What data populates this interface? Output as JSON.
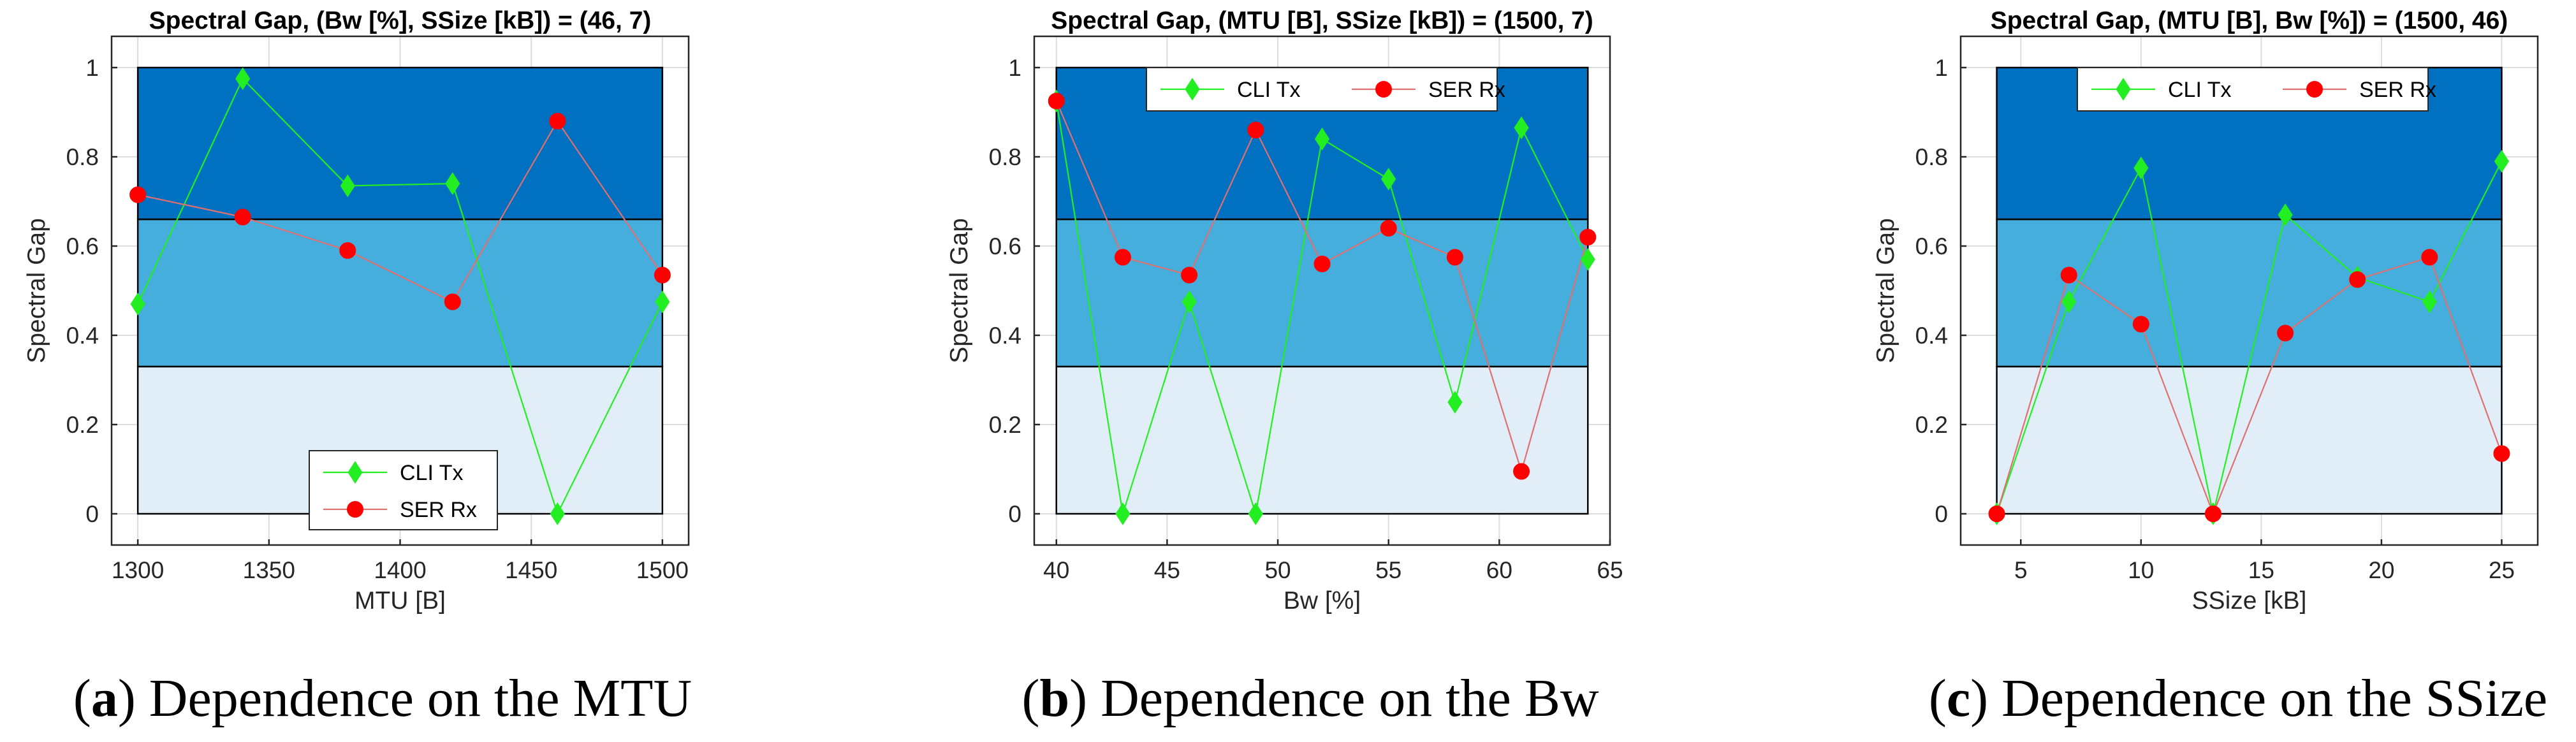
{
  "colors": {
    "band_low": "#E1EEF8",
    "band_mid": "#46AEDD",
    "band_high": "#0070C0",
    "cli": "#22EE22",
    "ser": "#FF0000",
    "ser_line": "#E07070"
  },
  "caption_open": "(",
  "caption_close": ")",
  "chart_data": [
    {
      "type": "line",
      "title": "Spectral Gap, (Bw [%], SSize [kB]) = (46, 7)",
      "xlabel": "MTU [B]",
      "ylabel": "Spectral Gap",
      "xlim": [
        1290,
        1510
      ],
      "ylim": [
        -0.07,
        1.07
      ],
      "xticks": [
        1300,
        1350,
        1400,
        1450,
        1500
      ],
      "yticks": [
        0,
        0.2,
        0.4,
        0.6,
        0.8,
        1
      ],
      "ytick_labels": [
        "0",
        "0.2",
        "0.4",
        "0.6",
        "0.8",
        "1"
      ],
      "grid": true,
      "legend_position": "bottom-center",
      "bands": [
        [
          0,
          0.33
        ],
        [
          0.33,
          0.66
        ],
        [
          0.66,
          1
        ]
      ],
      "x": [
        1300,
        1340,
        1380,
        1420,
        1460,
        1500
      ],
      "series": [
        {
          "name": "CLI Tx",
          "marker": "diamond",
          "values": [
            0.47,
            0.975,
            0.735,
            0.74,
            0.0,
            0.475
          ]
        },
        {
          "name": "SER Rx",
          "marker": "circle",
          "values": [
            0.715,
            0.665,
            0.59,
            0.475,
            0.88,
            0.535
          ]
        }
      ],
      "caption_letter": "a",
      "caption_text": " Dependence on the MTU"
    },
    {
      "type": "line",
      "title": "Spectral Gap, (MTU [B], SSize [kB]) = (1500, 7)",
      "xlabel": "Bw [%]",
      "ylabel": "Spectral Gap",
      "xlim": [
        39,
        65
      ],
      "ylim": [
        -0.07,
        1.07
      ],
      "xticks": [
        40,
        45,
        50,
        55,
        60,
        65
      ],
      "yticks": [
        0,
        0.2,
        0.4,
        0.6,
        0.8,
        1
      ],
      "ytick_labels": [
        "0",
        "0.2",
        "0.4",
        "0.6",
        "0.8",
        "1"
      ],
      "grid": true,
      "legend_position": "top-center",
      "bands": [
        [
          0,
          0.33
        ],
        [
          0.33,
          0.66
        ],
        [
          0.66,
          1
        ]
      ],
      "x": [
        40,
        43,
        46,
        49,
        52,
        55,
        58,
        61,
        64
      ],
      "series": [
        {
          "name": "CLI Tx",
          "marker": "diamond",
          "values": [
            0.925,
            0.0,
            0.475,
            0.0,
            0.84,
            0.75,
            0.25,
            0.865,
            0.57
          ]
        },
        {
          "name": "SER Rx",
          "marker": "circle",
          "values": [
            0.925,
            0.575,
            0.535,
            0.86,
            0.56,
            0.64,
            0.575,
            0.095,
            0.62
          ]
        }
      ],
      "caption_letter": "b",
      "caption_text": " Dependence on the Bw"
    },
    {
      "type": "line",
      "title": "Spectral Gap, (MTU [B], Bw [%]) = (1500, 46)",
      "xlabel": "SSize [kB]",
      "ylabel": "Spectral Gap",
      "xlim": [
        2.5,
        26.5
      ],
      "ylim": [
        -0.07,
        1.07
      ],
      "xticks": [
        5,
        10,
        15,
        20,
        25
      ],
      "yticks": [
        0,
        0.2,
        0.4,
        0.6,
        0.8,
        1
      ],
      "ytick_labels": [
        "0",
        "0.2",
        "0.4",
        "0.6",
        "0.8",
        "1"
      ],
      "grid": true,
      "legend_position": "top-center",
      "bands": [
        [
          0,
          0.33
        ],
        [
          0.33,
          0.66
        ],
        [
          0.66,
          1
        ]
      ],
      "x": [
        4,
        7,
        10,
        13,
        16,
        19,
        22,
        25
      ],
      "series": [
        {
          "name": "CLI Tx",
          "marker": "diamond",
          "values": [
            0.0,
            0.475,
            0.775,
            0.0,
            0.67,
            0.53,
            0.475,
            0.79
          ]
        },
        {
          "name": "SER Rx",
          "marker": "circle",
          "values": [
            0.0,
            0.535,
            0.425,
            0.0,
            0.405,
            0.525,
            0.575,
            0.135
          ]
        }
      ],
      "caption_letter": "c",
      "caption_text": " Dependence on the SSize"
    }
  ]
}
